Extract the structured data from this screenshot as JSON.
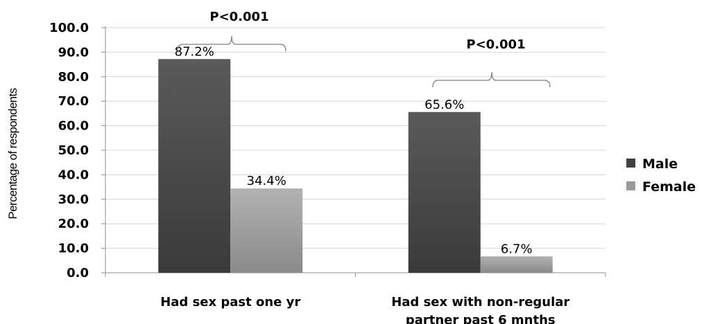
{
  "chart_data": {
    "type": "bar",
    "title": "",
    "xlabel": "",
    "ylabel": "Percentage of respondents",
    "ylim": [
      0,
      100
    ],
    "ytick_values": [
      0,
      10,
      20,
      30,
      40,
      50,
      60,
      70,
      80,
      90,
      100
    ],
    "ytick_labels": [
      "0.0",
      "10.0",
      "20.0",
      "30.0",
      "40.0",
      "50.0",
      "60.0",
      "70.0",
      "80.0",
      "90.0",
      "100.0"
    ],
    "categories": [
      [
        "Had sex past one yr"
      ],
      [
        "Had sex with non-regular",
        "partner past 6 mnths"
      ]
    ],
    "series": [
      {
        "name": "Male",
        "values": [
          87.2,
          65.6
        ],
        "labels": [
          "87.2%",
          "65.6%"
        ],
        "color": "#404040"
      },
      {
        "name": "Female",
        "values": [
          34.4,
          6.7
        ],
        "labels": [
          "34.4%",
          "6.7%"
        ],
        "color": "#9a9a9a"
      }
    ],
    "annotations": [
      "P<0.001",
      "P<0.001"
    ],
    "grid": true,
    "legend_position": "right"
  }
}
